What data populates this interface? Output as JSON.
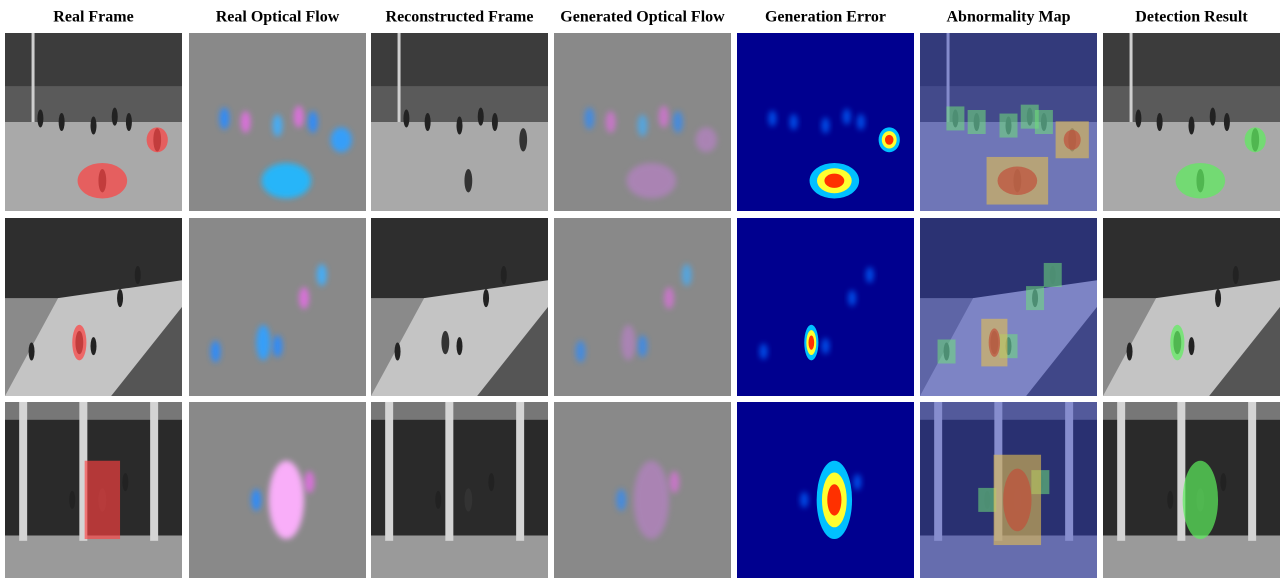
{
  "columns": [
    "Real Frame",
    "Real Optical Flow",
    "Reconstructed Frame",
    "Generated Optical Flow",
    "Generation Error",
    "Abnormality Map",
    "Detection Result"
  ]
}
